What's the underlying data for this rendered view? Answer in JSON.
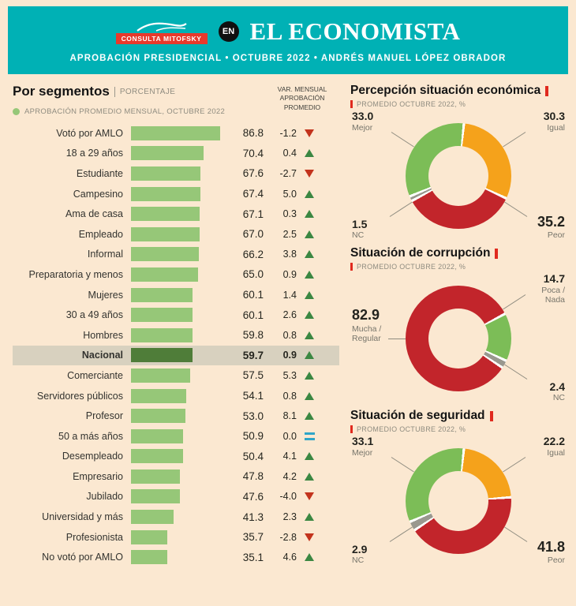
{
  "header": {
    "logo": "CONSULTA MITOFSKY",
    "en_badge": "EN",
    "brand": "EL ECONOMISTA",
    "subtitle": "APROBACIÓN PRESIDENCIAL • OCTUBRE 2022 • ANDRÉS MANUEL LÓPEZ OBRADOR"
  },
  "colors": {
    "teal": "#00b1b5",
    "cream": "#fbe8d1",
    "bar_green": "#96c778",
    "bar_green_dark": "#4f7d39",
    "highlight_band": "#d8d1bf",
    "up_green": "#3b8742",
    "down_red": "#c3331d",
    "equal_blue": "#2fa5c8",
    "donut_green": "#7cbd57",
    "donut_orange": "#f5a21b",
    "donut_red": "#c2252b",
    "donut_gray": "#9a988f",
    "logo_red": "#e8392b",
    "accent_red": "#e02a1e"
  },
  "chart_data": [
    {
      "type": "bar",
      "orientation": "horizontal",
      "title": "Por segmentos",
      "unit": "PORCENTAJE",
      "legend": "APROBACIÓN PROMEDIO MENSUAL, OCTUBRE 2022",
      "var_column_header": "VAR. MENSUAL\nAPROBACIÓN\nPROMEDIO",
      "xlim": [
        0,
        100
      ],
      "highlight_category": "Nacional",
      "categories": [
        "Votó por AMLO",
        "18 a 29 años",
        "Estudiante",
        "Campesino",
        "Ama de casa",
        "Empleado",
        "Informal",
        "Preparatoria y menos",
        "Mujeres",
        "30 a 49 años",
        "Hombres",
        "Nacional",
        "Comerciante",
        "Servidores públicos",
        "Profesor",
        "50 a más años",
        "Desempleado",
        "Empresario",
        "Jubilado",
        "Universidad y más",
        "Profesionista",
        "No votó por AMLO"
      ],
      "values": [
        86.8,
        70.4,
        67.6,
        67.4,
        67.1,
        67.0,
        66.2,
        65.0,
        60.1,
        60.1,
        59.8,
        59.7,
        57.5,
        54.1,
        53.0,
        50.9,
        50.4,
        47.8,
        47.6,
        41.3,
        35.7,
        35.1
      ],
      "variations": [
        -1.2,
        0.4,
        -2.7,
        5.0,
        0.3,
        2.5,
        3.8,
        0.9,
        1.4,
        2.6,
        0.8,
        0.9,
        5.3,
        0.8,
        8.1,
        0.0,
        4.1,
        4.2,
        -4.0,
        2.3,
        -2.8,
        4.6
      ],
      "directions": [
        "down",
        "up",
        "down",
        "up",
        "up",
        "up",
        "up",
        "up",
        "up",
        "up",
        "up",
        "up",
        "up",
        "up",
        "up",
        "equal",
        "up",
        "up",
        "down",
        "up",
        "down",
        "up"
      ]
    },
    {
      "type": "pie",
      "donut": true,
      "title": "Percepción situación económica",
      "subtitle": "PROMEDIO OCTUBRE 2022, %",
      "start": 6,
      "slices": [
        {
          "label": "Igual",
          "value": 30.3,
          "color": "#f5a21b",
          "pos": "tr"
        },
        {
          "label": "Peor",
          "value": 35.2,
          "color": "#c2252b",
          "pos": "br",
          "emphasis": true
        },
        {
          "label": "NC",
          "value": 1.5,
          "color": "#9a988f",
          "pos": "bl"
        },
        {
          "label": "Mejor",
          "value": 33.0,
          "color": "#7cbd57",
          "pos": "tl"
        }
      ]
    },
    {
      "type": "pie",
      "donut": true,
      "title": "Situación de corrupción",
      "subtitle": "PROMEDIO OCTUBRE 2022, %",
      "start": 62,
      "slices": [
        {
          "label": "Poca /\nNada",
          "value": 14.7,
          "color": "#7cbd57",
          "pos": "tr"
        },
        {
          "label": "NC",
          "value": 2.4,
          "color": "#9a988f",
          "pos": "br"
        },
        {
          "label": "Mucha /\nRegular",
          "value": 82.9,
          "color": "#c2252b",
          "pos": "l",
          "emphasis": true
        }
      ]
    },
    {
      "type": "pie",
      "donut": true,
      "title": "Situación de seguridad",
      "subtitle": "PROMEDIO OCTUBRE 2022, %",
      "start": 6,
      "slices": [
        {
          "label": "Igual",
          "value": 22.2,
          "color": "#f5a21b",
          "pos": "tr"
        },
        {
          "label": "Peor",
          "value": 41.8,
          "color": "#c2252b",
          "pos": "br",
          "emphasis": true
        },
        {
          "label": "NC",
          "value": 2.9,
          "color": "#9a988f",
          "pos": "bl"
        },
        {
          "label": "Mejor",
          "value": 33.1,
          "color": "#7cbd57",
          "pos": "tl"
        }
      ]
    }
  ]
}
